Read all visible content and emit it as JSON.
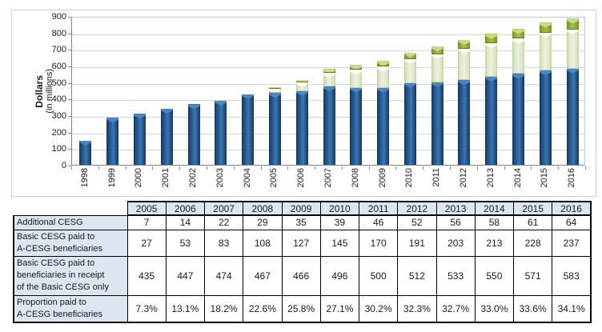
{
  "chart_data": {
    "type": "bar",
    "stacked": true,
    "title": "",
    "ylabel_bold": "Dollars",
    "ylabel_sub": "(in millions)",
    "xlabel": "",
    "legend": "none",
    "grid": true,
    "ylim": [
      0,
      900
    ],
    "yticks": [
      0,
      100,
      200,
      300,
      400,
      500,
      600,
      700,
      800,
      900
    ],
    "categories": [
      "1998",
      "1999",
      "2000",
      "2001",
      "2002",
      "2003",
      "2004",
      "2005",
      "2006",
      "2007",
      "2008",
      "2009",
      "2010",
      "2011",
      "2012",
      "2013",
      "2014",
      "2015",
      "2016"
    ],
    "series": [
      {
        "name": "Basic CESG paid to beneficiaries in receipt of the Basic CESG only",
        "color_key": "blue",
        "color": "#2f6aa5",
        "values": [
          147,
          285,
          310,
          341,
          366,
          388,
          428,
          435,
          447,
          474,
          467,
          466,
          496,
          500,
          512,
          533,
          550,
          571,
          583
        ]
      },
      {
        "name": "Basic CESG paid to A-CESG beneficiaries",
        "color_key": "pale",
        "color": "#edf1e0",
        "values": [
          0,
          0,
          0,
          0,
          0,
          0,
          0,
          27,
          53,
          83,
          108,
          127,
          145,
          170,
          191,
          203,
          213,
          228,
          237
        ]
      },
      {
        "name": "Additional CESG",
        "color_key": "green",
        "color": "#a6c251",
        "values": [
          0,
          0,
          0,
          0,
          0,
          0,
          0,
          7,
          14,
          22,
          29,
          35,
          39,
          46,
          52,
          56,
          58,
          61,
          64
        ]
      }
    ]
  },
  "table": {
    "years": [
      "2005",
      "2006",
      "2007",
      "2008",
      "2009",
      "2010",
      "2011",
      "2012",
      "2013",
      "2014",
      "2015",
      "2016"
    ],
    "rows": [
      {
        "label": "Additional CESG",
        "values": [
          "7",
          "14",
          "22",
          "29",
          "35",
          "39",
          "46",
          "52",
          "56",
          "58",
          "61",
          "64"
        ]
      },
      {
        "label": "Basic CESG paid to\n A-CESG beneficiaries",
        "values": [
          "27",
          "53",
          "83",
          "108",
          "127",
          "145",
          "170",
          "191",
          "203",
          "213",
          "228",
          "237"
        ]
      },
      {
        "label": "Basic CESG paid to\n beneficiaries in receipt\nof the Basic CESG only",
        "values": [
          "435",
          "447",
          "474",
          "467",
          "466",
          "496",
          "500",
          "512",
          "533",
          "550",
          "571",
          "583"
        ]
      },
      {
        "label": "Proportion paid to\n A-CESG beneficiaries",
        "values": [
          "7.3%",
          "13.1%",
          "18.2%",
          "22.6%",
          "25.8%",
          "27.1%",
          "30.2%",
          "32.3%",
          "32.7%",
          "33.0%",
          "33.6%",
          "34.1%"
        ]
      }
    ]
  },
  "colors": {
    "bar_blue": "#2f6aa5",
    "bar_pale": "#edf1e0",
    "bar_green": "#a6c251",
    "gridline": "#c9d8ea",
    "plot_border": "#b9cbe0",
    "axis": "#848484",
    "table_header_fill": "#dce6f1",
    "table_border": "#000000"
  }
}
